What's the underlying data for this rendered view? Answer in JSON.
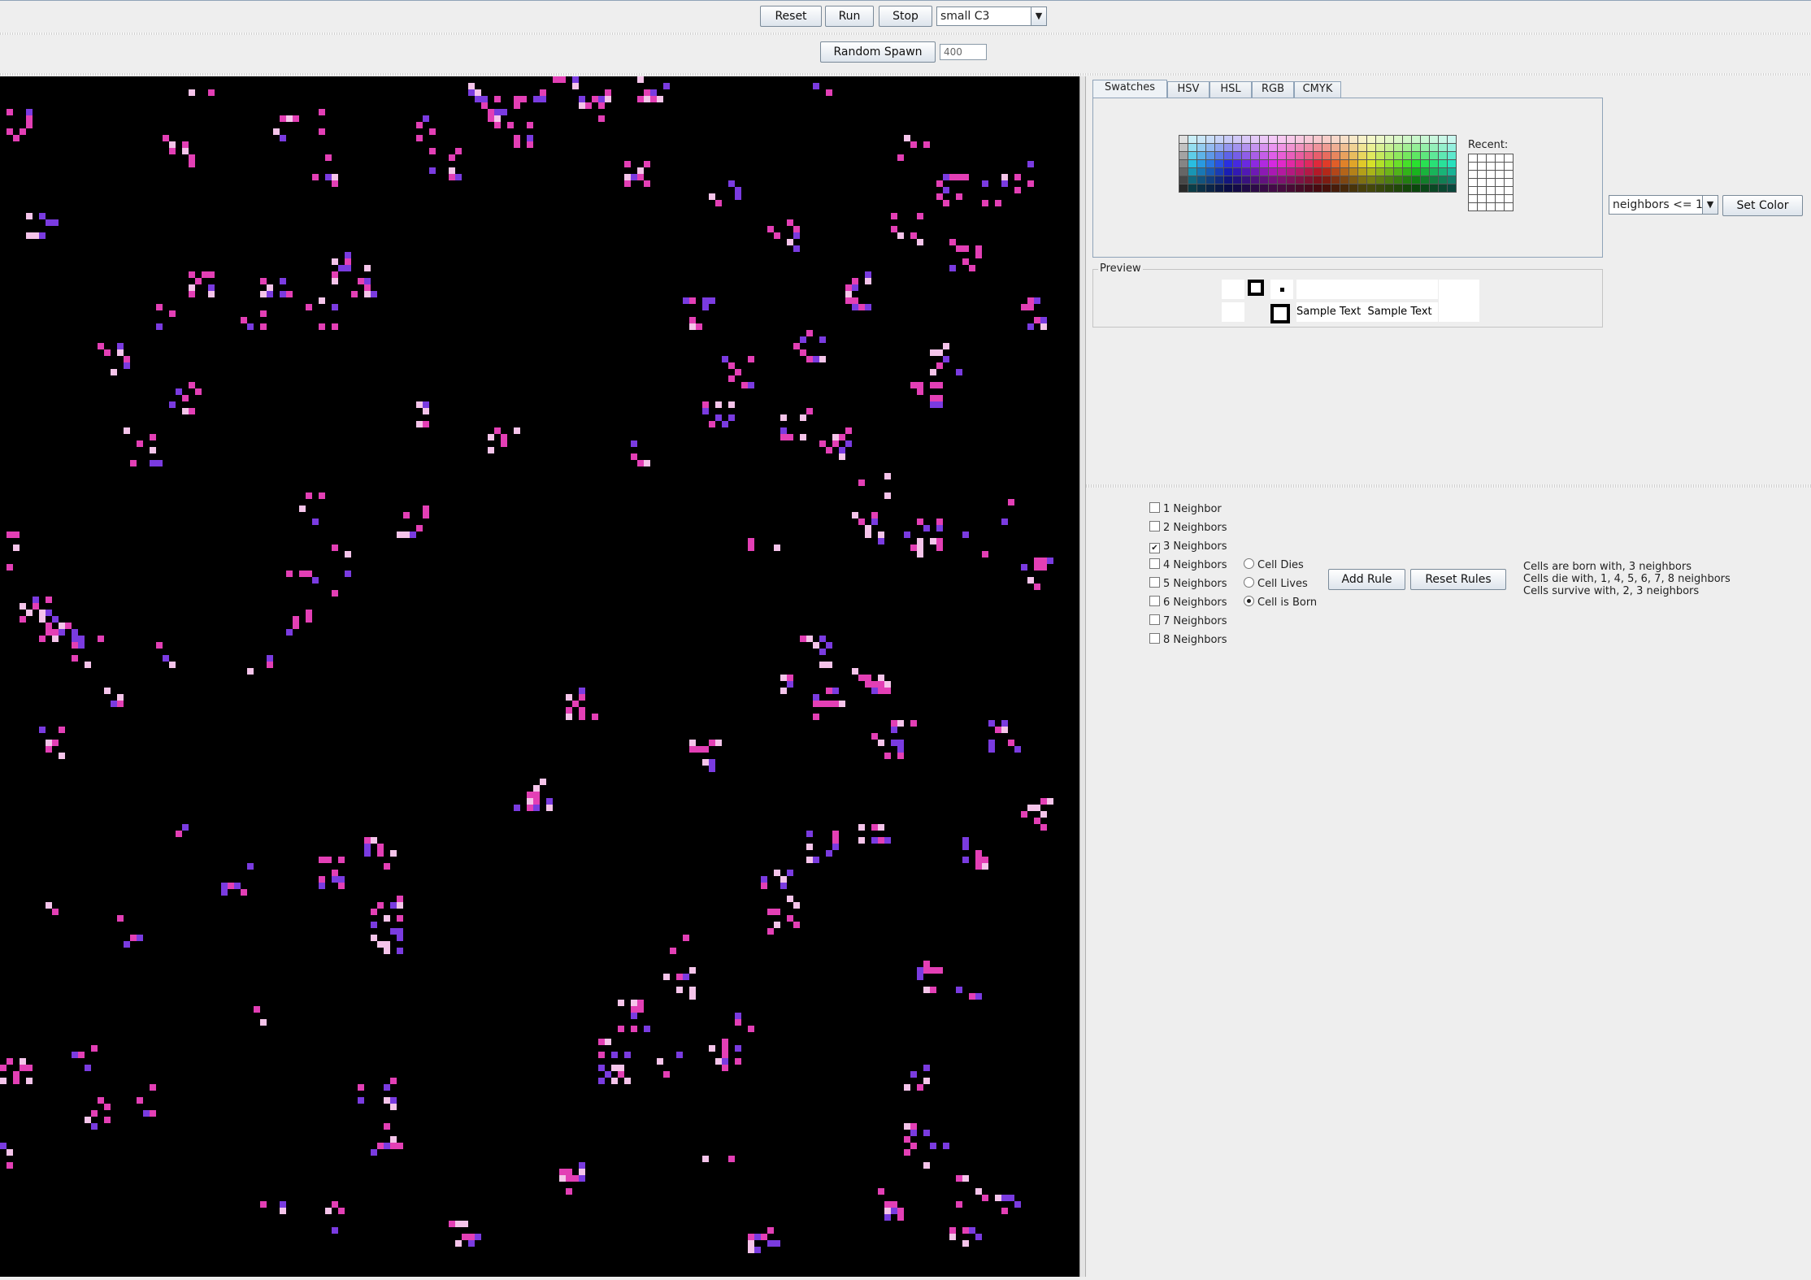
{
  "toolbar": {
    "reset": "Reset",
    "run": "Run",
    "stop": "Stop",
    "preset": "small C3",
    "random_spawn": "Random Spawn",
    "spawn_count": "400"
  },
  "color_chooser": {
    "tabs": [
      "Swatches",
      "HSV",
      "HSL",
      "RGB",
      "CMYK"
    ],
    "selected_tab": "Swatches",
    "recent_label": "Recent:",
    "preview_label": "Preview",
    "sample_text": "Sample Text"
  },
  "color_rule": {
    "condition": "neighbors <= 1",
    "set_color": "Set Color"
  },
  "rules": {
    "neighbors": [
      {
        "label": "1 Neighbor",
        "checked": false
      },
      {
        "label": "2 Neighbors",
        "checked": false
      },
      {
        "label": "3 Neighbors",
        "checked": true
      },
      {
        "label": "4 Neighbors",
        "checked": false
      },
      {
        "label": "5 Neighbors",
        "checked": false
      },
      {
        "label": "6 Neighbors",
        "checked": false
      },
      {
        "label": "7 Neighbors",
        "checked": false
      },
      {
        "label": "8 Neighbors",
        "checked": false
      }
    ],
    "outcomes": [
      {
        "label": "Cell Dies",
        "selected": false
      },
      {
        "label": "Cell Lives",
        "selected": false
      },
      {
        "label": "Cell is Born",
        "selected": true
      }
    ],
    "add_rule": "Add Rule",
    "reset_rules": "Reset Rules",
    "summary": [
      "Cells are born with, 3 neighbors",
      "Cells die with, 1, 4, 5, 6, 7, 8 neighbors",
      "Cells survive with, 2, 3 neighbors"
    ]
  },
  "colors": {
    "board_bg": "#000000",
    "cell_pink": "#e33fb5",
    "cell_light": "#f5c4ea",
    "cell_purple": "#7a3be0"
  }
}
